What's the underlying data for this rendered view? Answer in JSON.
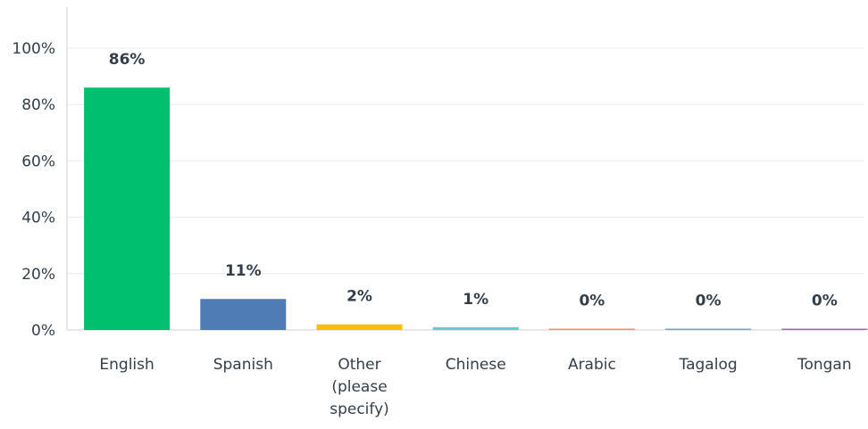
{
  "chart_data": {
    "type": "bar",
    "categories": [
      "English",
      "Spanish",
      "Other (please specify)",
      "Chinese",
      "Arabic",
      "Tagalog",
      "Tongan"
    ],
    "category_lines": [
      [
        "English"
      ],
      [
        "Spanish"
      ],
      [
        "Other",
        "(please",
        "specify)"
      ],
      [
        "Chinese"
      ],
      [
        "Arabic"
      ],
      [
        "Tagalog"
      ],
      [
        "Tongan"
      ]
    ],
    "values": [
      86,
      11,
      2,
      1,
      0,
      0,
      0
    ],
    "data_labels": [
      "86%",
      "11%",
      "2%",
      "1%",
      "0%",
      "0%",
      "0%"
    ],
    "bar_colors": [
      "#00bf6f",
      "#507cb6",
      "#f9be00",
      "#6bc8cd",
      "#ff8b4f",
      "#7f9cb6",
      "#9d6aa8"
    ],
    "ylim": [
      0,
      100
    ],
    "yticks": [
      0,
      20,
      40,
      60,
      80,
      100
    ],
    "ytick_labels": [
      "0%",
      "20%",
      "40%",
      "60%",
      "80%",
      "100%"
    ],
    "grid": true,
    "title": "",
    "xlabel": "",
    "ylabel": ""
  }
}
